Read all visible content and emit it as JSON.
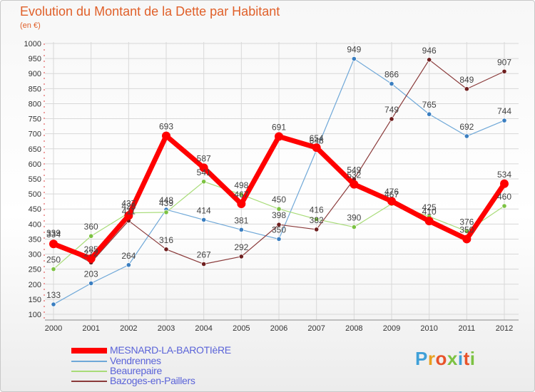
{
  "title": "Evolution du Montant de la Dette par Habitant",
  "subtitle": "(en €)",
  "logo": {
    "text": "Proxiti",
    "colors": [
      "#3fa0d8",
      "#e8a020",
      "#e8532a",
      "#7cc242",
      "#3fa0d8",
      "#e8532a",
      "#7cc242"
    ]
  },
  "chart_data": {
    "type": "line",
    "title": "Evolution du Montant de la Dette par Habitant",
    "ylabel": "(en €)",
    "xlabel": "",
    "x": [
      "2000",
      "2001",
      "2002",
      "2003",
      "2004",
      "2005",
      "2006",
      "2007",
      "2008",
      "2009",
      "2010",
      "2011",
      "2012"
    ],
    "ylim": [
      100,
      1000
    ],
    "yticks": [
      100,
      150,
      200,
      250,
      300,
      350,
      400,
      450,
      500,
      550,
      600,
      650,
      700,
      750,
      800,
      850,
      900,
      950,
      1000
    ],
    "grid": true,
    "legend_position": "bottom-left",
    "series": [
      {
        "name": "MESNARD-LA-BAROTIèRE",
        "color": "#ff0000",
        "width": 7,
        "values": [
          334,
          285,
          428,
          693,
          587,
          467,
          691,
          654,
          532,
          476,
          410,
          350,
          534
        ],
        "labels": [
          "334",
          "285",
          "428",
          "693",
          "587",
          "467",
          "691",
          "654",
          "532",
          "476",
          "410",
          "350",
          "534"
        ]
      },
      {
        "name": "Vendrennes",
        "color": "#6fa8d8",
        "width": 1.2,
        "marker": "#3a7ec0",
        "values": [
          133,
          203,
          264,
          448,
          414,
          381,
          350,
          646,
          949,
          866,
          765,
          692,
          744
        ],
        "labels": [
          "133",
          "203",
          "264",
          "448",
          "414",
          "381",
          "350",
          "646",
          "949",
          "866",
          "765",
          "692",
          "744"
        ]
      },
      {
        "name": "Beaurepaire",
        "color": "#a8dc78",
        "width": 1.2,
        "marker": "#7cc242",
        "values": [
          250,
          360,
          437,
          439,
          541,
          498,
          450,
          416,
          390,
          467,
          425,
          376,
          460
        ],
        "labels": [
          "250",
          "360",
          "437",
          "439",
          "541",
          "498",
          "450",
          "416",
          "390",
          "467",
          "425",
          "376",
          "460"
        ]
      },
      {
        "name": "Bazoges-en-Paillers",
        "color": "#8a3a3a",
        "width": 1.2,
        "marker": "#6e1e1e",
        "values": [
          339,
          272,
          411,
          316,
          267,
          292,
          398,
          382,
          549,
          749,
          946,
          849,
          907
        ],
        "labels": [
          "339",
          "272",
          "411",
          "316",
          "267",
          "292",
          "398",
          "382",
          "549",
          "749",
          "946",
          "849",
          "907"
        ]
      }
    ]
  }
}
